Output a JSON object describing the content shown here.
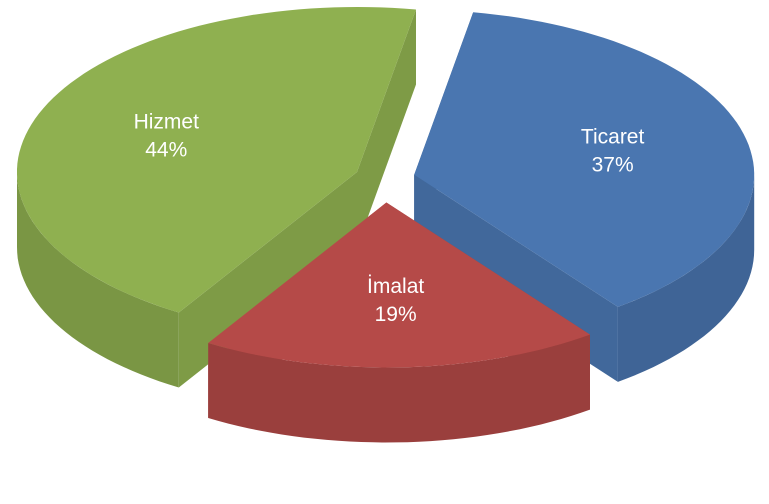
{
  "chart_data": {
    "type": "pie3d",
    "categories": [
      "Ticaret",
      "İmalat",
      "Hizmet"
    ],
    "values": [
      37,
      19,
      44
    ],
    "value_labels": [
      "37%",
      "19%",
      "44%"
    ],
    "colors": [
      "#4a76b0",
      "#b54a48",
      "#8fb050"
    ]
  }
}
